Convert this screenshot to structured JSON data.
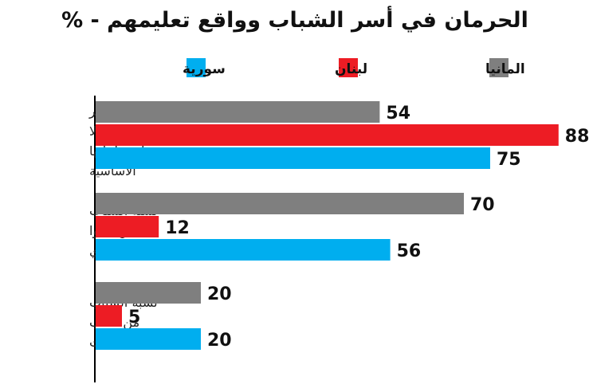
{
  "chart_data": {
    "type": "bar",
    "orientation": "horizontal",
    "title": "الحرمان في أسر الشباب وواقع تعليمهم - %",
    "categories": [
      [
        "نسبة الأسر",
        "التي دخلها لا",
        "يغطي حاجاتها",
        "الأساسية"
      ],
      [
        "نسبة الشباب",
        "الذين أتموا",
        "التعليم الثانوي"
      ],
      [
        "نسبة الشباب",
        "من طلاب",
        "الجامعات"
      ]
    ],
    "series": [
      {
        "name": "المانيا",
        "color": "#7f7f7f",
        "values": [
          54,
          70,
          20
        ]
      },
      {
        "name": "لبنان",
        "color": "#ed1c24",
        "values": [
          88,
          12,
          5
        ]
      },
      {
        "name": "سورية",
        "color": "#00aeef",
        "values": [
          75,
          56,
          20
        ]
      }
    ],
    "xlim": [
      0,
      100
    ],
    "grid": false,
    "legend_position": "top"
  }
}
